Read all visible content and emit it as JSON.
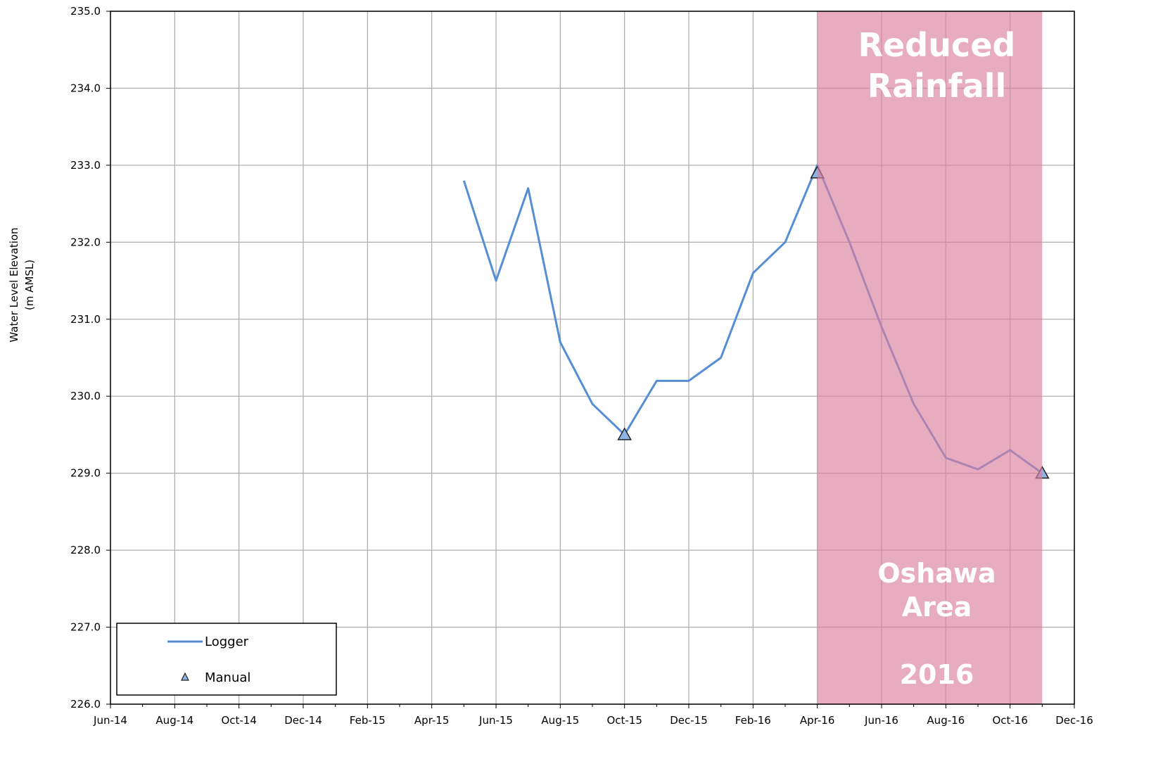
{
  "chart_data": {
    "type": "line",
    "y_label": [
      "Water Level Elevation",
      "(m AMSL)"
    ],
    "xlim": [
      "2014-06",
      "2016-12"
    ],
    "xticks": [
      {
        "value": "2014-06",
        "label": "Jun-14"
      },
      {
        "value": "2014-08",
        "label": "Aug-14"
      },
      {
        "value": "2014-10",
        "label": "Oct-14"
      },
      {
        "value": "2014-12",
        "label": "Dec-14"
      },
      {
        "value": "2015-02",
        "label": "Feb-15"
      },
      {
        "value": "2015-04",
        "label": "Apr-15"
      },
      {
        "value": "2015-06",
        "label": "Jun-15"
      },
      {
        "value": "2015-08",
        "label": "Aug-15"
      },
      {
        "value": "2015-10",
        "label": "Oct-15"
      },
      {
        "value": "2015-12",
        "label": "Dec-15"
      },
      {
        "value": "2016-02",
        "label": "Feb-16"
      },
      {
        "value": "2016-04",
        "label": "Apr-16"
      },
      {
        "value": "2016-06",
        "label": "Jun-16"
      },
      {
        "value": "2016-08",
        "label": "Aug-16"
      },
      {
        "value": "2016-10",
        "label": "Oct-16"
      },
      {
        "value": "2016-12",
        "label": "Dec-16"
      }
    ],
    "ylim": [
      226,
      235
    ],
    "yticks": [
      {
        "value": 226,
        "label": "226.0"
      },
      {
        "value": 227,
        "label": "227.0"
      },
      {
        "value": 228,
        "label": "228.0"
      },
      {
        "value": 229,
        "label": "229.0"
      },
      {
        "value": 230,
        "label": "230.0"
      },
      {
        "value": 231,
        "label": "231.0"
      },
      {
        "value": 232,
        "label": "232.0"
      },
      {
        "value": 233,
        "label": "233.0"
      },
      {
        "value": 234,
        "label": "234.0"
      },
      {
        "value": 235,
        "label": "235.0"
      }
    ],
    "grid": true,
    "legend": "lower left",
    "series": [
      {
        "name": "Logger",
        "color": "#558ed5",
        "x": [
          "2015-05",
          "2015-06",
          "2015-07",
          "2015-08",
          "2015-09",
          "2015-10",
          "2015-11",
          "2015-12",
          "2016-01",
          "2016-02",
          "2016-03",
          "2016-04",
          "2016-05",
          "2016-06",
          "2016-07",
          "2016-08",
          "2016-09",
          "2016-10",
          "2016-11"
        ],
        "values": [
          232.8,
          231.5,
          232.7,
          230.7,
          229.9,
          229.5,
          230.2,
          230.2,
          230.5,
          231.6,
          232.0,
          233.0,
          232.0,
          230.9,
          229.9,
          229.2,
          229.05,
          229.3,
          229.0
        ]
      },
      {
        "name": "Manual",
        "color": "#8db4e2",
        "marker": "triangle",
        "x": [
          "2015-10",
          "2016-04",
          "2016-11"
        ],
        "values": [
          229.5,
          232.9,
          229.0
        ]
      }
    ],
    "shaded_region": {
      "x": [
        "2016-04",
        "2016-11"
      ],
      "color": "#dc7fa0",
      "labels": [
        "Reduced",
        "Rainfall",
        "Oshawa",
        "Area",
        "2016"
      ]
    }
  }
}
